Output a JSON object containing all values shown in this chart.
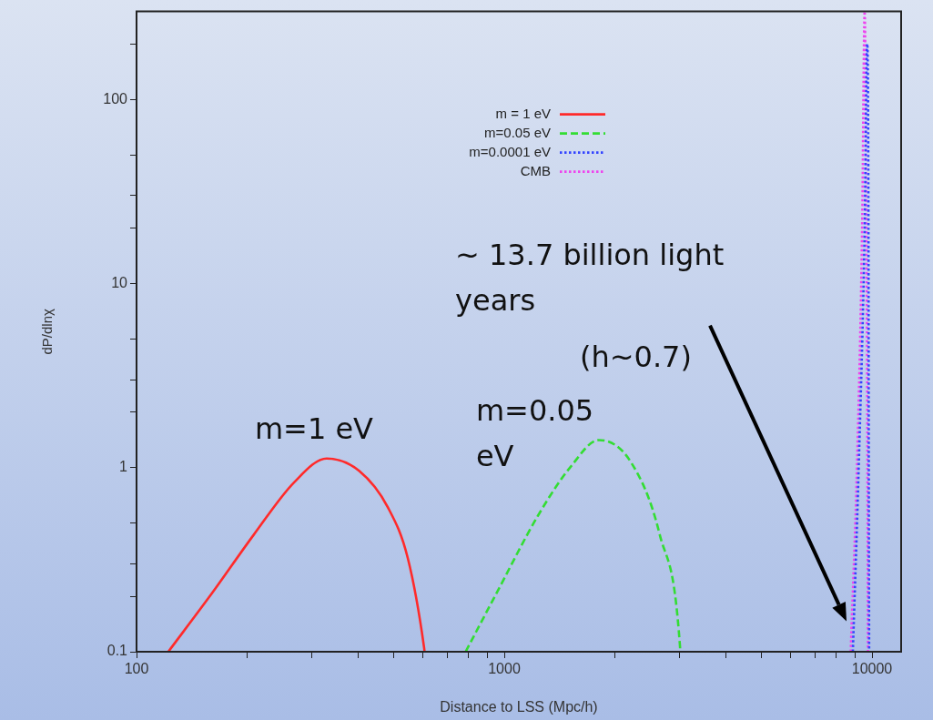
{
  "chart_data": {
    "type": "line",
    "xlabel": "Distance to LSS (Mpc/h)",
    "ylabel": "dP/dlnχ",
    "log": "xy",
    "grid": false,
    "legend": "top",
    "marker": "none",
    "xlim": [
      100,
      12000
    ],
    "ylim": [
      0.1,
      300
    ],
    "xticks": [
      100,
      {
        "value": 200,
        "label": null
      },
      {
        "value": 300,
        "label": null
      },
      {
        "value": 400,
        "label": null
      },
      {
        "value": 500,
        "label": null
      },
      {
        "value": 600,
        "label": null
      },
      {
        "value": 700,
        "label": null
      },
      {
        "value": 800,
        "label": null
      },
      {
        "value": 900,
        "label": null
      },
      1000,
      {
        "value": 2000,
        "label": null
      },
      {
        "value": 3000,
        "label": null
      },
      {
        "value": 4000,
        "label": null
      },
      {
        "value": 5000,
        "label": null
      },
      {
        "value": 6000,
        "label": null
      },
      {
        "value": 7000,
        "label": null
      },
      {
        "value": 8000,
        "label": null
      },
      {
        "value": 9000,
        "label": null
      },
      10000
    ],
    "yticks": [
      0.1,
      {
        "value": 0.2,
        "label": null
      },
      {
        "value": 0.3,
        "label": null
      },
      {
        "value": 0.5,
        "label": null
      },
      1,
      {
        "value": 2,
        "label": null
      },
      {
        "value": 3,
        "label": null
      },
      {
        "value": 5,
        "label": null
      },
      10,
      {
        "value": 20,
        "label": null
      },
      {
        "value": 30,
        "label": null
      },
      {
        "value": 50,
        "label": null
      },
      100,
      {
        "value": 200,
        "label": null
      }
    ],
    "series": [
      {
        "name": "m = 1 eV",
        "color": "#ff2a2a",
        "line_style": "solid",
        "x": [
          122,
          161,
          208,
          268,
          329,
          403,
          482,
          547,
          605,
          607
        ],
        "values": [
          0.1,
          0.21,
          0.43,
          0.83,
          1.12,
          0.96,
          0.61,
          0.32,
          0.106,
          0.1
        ]
      },
      {
        "name": "m=0.05 eV",
        "color": "#33dd33",
        "line_style": "dashed",
        "x": [
          785,
          955,
          1236,
          1515,
          1808,
          2217,
          2649,
          3006,
          3010
        ],
        "values": [
          0.1,
          0.21,
          0.55,
          1.01,
          1.41,
          1.06,
          0.43,
          0.106,
          0.1
        ]
      },
      {
        "name": "m=0.0001 eV",
        "color": "#3344ff",
        "line_style": "dotted",
        "x": [
          8870,
          9200,
          9550,
          9700,
          9780,
          9800,
          9820
        ],
        "values": [
          0.1,
          1,
          20,
          200,
          20,
          1,
          0.1
        ]
      },
      {
        "name": "CMB",
        "color": "#ee44ee",
        "line_style": "dotted",
        "x": [
          8750,
          9100,
          9400,
          9550,
          9650,
          9720,
          9750
        ],
        "values": [
          0.1,
          1,
          20,
          300,
          20,
          1,
          0.1
        ]
      }
    ],
    "annotations": [
      {
        "text": "m=1 eV",
        "x": 329,
        "y": 1.12
      },
      {
        "text": "m=0.05 eV",
        "x": 1808,
        "y": 1.41
      },
      "~ 13.7 billion light years",
      "(h~0.7)"
    ]
  }
}
